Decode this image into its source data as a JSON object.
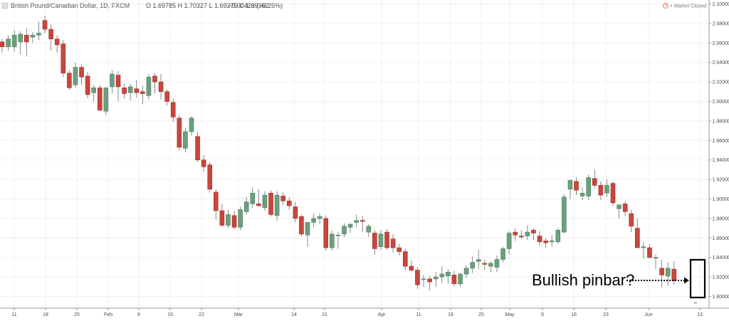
{
  "header": {
    "symbol_title": "British Pound/Canadian Dollar, 1D, FXCM",
    "ohlc": [
      {
        "label": "O",
        "value": "1.69785"
      },
      {
        "label": "H",
        "value": "1.70327"
      },
      {
        "label": "L",
        "value": "1.69275"
      },
      {
        "label": "C",
        "value": "1.69362"
      }
    ],
    "change": "−0.00423 (−0.25%)",
    "market_status": "Market Closed",
    "market_status_icon": "clock-icon"
  },
  "colors": {
    "bull": "#6b9f7e",
    "bear": "#c9463d",
    "grid": "#f0f0f0",
    "axis": "#9a9a9a",
    "highlight_box": "#000000"
  },
  "annotation": {
    "text": "Bullish pinbar?"
  },
  "footer": {
    "scroll_icon": "double-chevron-right-icon"
  },
  "chart_data": {
    "type": "candlestick",
    "y_axis_ticks": [
      "2.10000",
      "2.08000",
      "2.06000",
      "2.04000",
      "2.02000",
      "2.00000",
      "1.98000",
      "1.96000",
      "1.94000",
      "1.92000",
      "1.90000",
      "1.88000",
      "1.86000",
      "1.84000",
      "1.82000",
      "1.80000"
    ],
    "ylim": [
      1.788,
      2.104
    ],
    "x_axis_labels": [
      "11",
      "18",
      "25",
      "Feb",
      "8",
      "15",
      "22",
      "Mar",
      "14",
      "21",
      "Apr",
      "11",
      "18",
      "25",
      "May",
      "9",
      "16",
      "23",
      "Jun",
      "13"
    ],
    "candles": [
      {
        "o": 2.061,
        "h": 2.064,
        "l": 2.05,
        "c": 2.056
      },
      {
        "o": 2.056,
        "h": 2.068,
        "l": 2.052,
        "c": 2.064
      },
      {
        "o": 2.056,
        "h": 2.073,
        "l": 2.051,
        "c": 2.068
      },
      {
        "o": 2.061,
        "h": 2.072,
        "l": 2.048,
        "c": 2.069
      },
      {
        "o": 2.068,
        "h": 2.075,
        "l": 2.046,
        "c": 2.061
      },
      {
        "o": 2.066,
        "h": 2.071,
        "l": 2.06,
        "c": 2.068
      },
      {
        "o": 2.068,
        "h": 2.082,
        "l": 2.063,
        "c": 2.07
      },
      {
        "o": 2.083,
        "h": 2.088,
        "l": 2.07,
        "c": 2.074
      },
      {
        "o": 2.074,
        "h": 2.079,
        "l": 2.052,
        "c": 2.064
      },
      {
        "o": 2.064,
        "h": 2.068,
        "l": 2.05,
        "c": 2.058
      },
      {
        "o": 2.059,
        "h": 2.063,
        "l": 2.025,
        "c": 2.029
      },
      {
        "o": 2.029,
        "h": 2.032,
        "l": 2.012,
        "c": 2.014
      },
      {
        "o": 2.017,
        "h": 2.04,
        "l": 2.014,
        "c": 2.035
      },
      {
        "o": 2.035,
        "h": 2.038,
        "l": 2.017,
        "c": 2.025
      },
      {
        "o": 2.026,
        "h": 2.03,
        "l": 2.003,
        "c": 2.007
      },
      {
        "o": 2.009,
        "h": 2.017,
        "l": 2.0,
        "c": 2.014
      },
      {
        "o": 2.014,
        "h": 2.017,
        "l": 1.99,
        "c": 1.991
      },
      {
        "o": 1.99,
        "h": 2.014,
        "l": 1.986,
        "c": 2.014
      },
      {
        "o": 2.015,
        "h": 2.032,
        "l": 2.008,
        "c": 2.028
      },
      {
        "o": 2.027,
        "h": 2.031,
        "l": 2.0,
        "c": 2.015
      },
      {
        "o": 2.014,
        "h": 2.018,
        "l": 2.003,
        "c": 2.008
      },
      {
        "o": 2.009,
        "h": 2.018,
        "l": 2.001,
        "c": 2.015
      },
      {
        "o": 2.013,
        "h": 2.022,
        "l": 2.004,
        "c": 2.009
      },
      {
        "o": 2.01,
        "h": 2.016,
        "l": 1.997,
        "c": 2.008
      },
      {
        "o": 2.006,
        "h": 2.028,
        "l": 2.002,
        "c": 2.025
      },
      {
        "o": 2.026,
        "h": 2.029,
        "l": 2.008,
        "c": 2.02
      },
      {
        "o": 2.02,
        "h": 2.028,
        "l": 2.002,
        "c": 2.01
      },
      {
        "o": 2.01,
        "h": 2.012,
        "l": 1.996,
        "c": 2.0
      },
      {
        "o": 1.999,
        "h": 2.003,
        "l": 1.979,
        "c": 1.984
      },
      {
        "o": 1.983,
        "h": 1.986,
        "l": 1.95,
        "c": 1.953
      },
      {
        "o": 1.952,
        "h": 1.973,
        "l": 1.948,
        "c": 1.969
      },
      {
        "o": 1.969,
        "h": 1.985,
        "l": 1.965,
        "c": 1.983
      },
      {
        "o": 1.964,
        "h": 1.969,
        "l": 1.938,
        "c": 1.94
      },
      {
        "o": 1.94,
        "h": 1.945,
        "l": 1.928,
        "c": 1.933
      },
      {
        "o": 1.935,
        "h": 1.938,
        "l": 1.906,
        "c": 1.91
      },
      {
        "o": 1.907,
        "h": 1.91,
        "l": 1.879,
        "c": 1.888
      },
      {
        "o": 1.888,
        "h": 1.895,
        "l": 1.871,
        "c": 1.873
      },
      {
        "o": 1.873,
        "h": 1.889,
        "l": 1.87,
        "c": 1.884
      },
      {
        "o": 1.883,
        "h": 1.888,
        "l": 1.869,
        "c": 1.871
      },
      {
        "o": 1.871,
        "h": 1.892,
        "l": 1.868,
        "c": 1.889
      },
      {
        "o": 1.887,
        "h": 1.902,
        "l": 1.884,
        "c": 1.897
      },
      {
        "o": 1.895,
        "h": 1.912,
        "l": 1.891,
        "c": 1.906
      },
      {
        "o": 1.895,
        "h": 1.91,
        "l": 1.893,
        "c": 1.893
      },
      {
        "o": 1.891,
        "h": 1.908,
        "l": 1.888,
        "c": 1.904
      },
      {
        "o": 1.906,
        "h": 1.909,
        "l": 1.882,
        "c": 1.884
      },
      {
        "o": 1.883,
        "h": 1.908,
        "l": 1.878,
        "c": 1.904
      },
      {
        "o": 1.903,
        "h": 1.907,
        "l": 1.894,
        "c": 1.898
      },
      {
        "o": 1.898,
        "h": 1.902,
        "l": 1.889,
        "c": 1.893
      },
      {
        "o": 1.892,
        "h": 1.897,
        "l": 1.876,
        "c": 1.88
      },
      {
        "o": 1.882,
        "h": 1.884,
        "l": 1.862,
        "c": 1.864
      },
      {
        "o": 1.863,
        "h": 1.873,
        "l": 1.851,
        "c": 1.876
      },
      {
        "o": 1.876,
        "h": 1.885,
        "l": 1.871,
        "c": 1.88
      },
      {
        "o": 1.88,
        "h": 1.885,
        "l": 1.874,
        "c": 1.882
      },
      {
        "o": 1.88,
        "h": 1.883,
        "l": 1.847,
        "c": 1.85
      },
      {
        "o": 1.85,
        "h": 1.868,
        "l": 1.847,
        "c": 1.864
      },
      {
        "o": 1.863,
        "h": 1.866,
        "l": 1.849,
        "c": 1.863
      },
      {
        "o": 1.864,
        "h": 1.875,
        "l": 1.861,
        "c": 1.872
      },
      {
        "o": 1.871,
        "h": 1.876,
        "l": 1.865,
        "c": 1.874
      },
      {
        "o": 1.876,
        "h": 1.884,
        "l": 1.871,
        "c": 1.878
      },
      {
        "o": 1.878,
        "h": 1.883,
        "l": 1.866,
        "c": 1.877
      },
      {
        "o": 1.866,
        "h": 1.874,
        "l": 1.861,
        "c": 1.872
      },
      {
        "o": 1.865,
        "h": 1.868,
        "l": 1.843,
        "c": 1.849
      },
      {
        "o": 1.851,
        "h": 1.868,
        "l": 1.848,
        "c": 1.864
      },
      {
        "o": 1.866,
        "h": 1.869,
        "l": 1.848,
        "c": 1.85
      },
      {
        "o": 1.859,
        "h": 1.864,
        "l": 1.845,
        "c": 1.85
      },
      {
        "o": 1.85,
        "h": 1.854,
        "l": 1.842,
        "c": 1.846
      },
      {
        "o": 1.846,
        "h": 1.849,
        "l": 1.827,
        "c": 1.831
      },
      {
        "o": 1.831,
        "h": 1.837,
        "l": 1.825,
        "c": 1.827
      },
      {
        "o": 1.827,
        "h": 1.83,
        "l": 1.808,
        "c": 1.812
      },
      {
        "o": 1.818,
        "h": 1.822,
        "l": 1.81,
        "c": 1.818
      },
      {
        "o": 1.818,
        "h": 1.821,
        "l": 1.806,
        "c": 1.815
      },
      {
        "o": 1.818,
        "h": 1.825,
        "l": 1.81,
        "c": 1.82
      },
      {
        "o": 1.82,
        "h": 1.831,
        "l": 1.814,
        "c": 1.823
      },
      {
        "o": 1.821,
        "h": 1.828,
        "l": 1.813,
        "c": 1.825
      },
      {
        "o": 1.822,
        "h": 1.826,
        "l": 1.81,
        "c": 1.813
      },
      {
        "o": 1.813,
        "h": 1.824,
        "l": 1.81,
        "c": 1.823
      },
      {
        "o": 1.823,
        "h": 1.832,
        "l": 1.819,
        "c": 1.829
      },
      {
        "o": 1.829,
        "h": 1.841,
        "l": 1.824,
        "c": 1.835
      },
      {
        "o": 1.836,
        "h": 1.848,
        "l": 1.828,
        "c": 1.838
      },
      {
        "o": 1.834,
        "h": 1.838,
        "l": 1.827,
        "c": 1.833
      },
      {
        "o": 1.831,
        "h": 1.836,
        "l": 1.825,
        "c": 1.834
      },
      {
        "o": 1.83,
        "h": 1.842,
        "l": 1.825,
        "c": 1.838
      },
      {
        "o": 1.838,
        "h": 1.851,
        "l": 1.835,
        "c": 1.849
      },
      {
        "o": 1.849,
        "h": 1.867,
        "l": 1.843,
        "c": 1.865
      },
      {
        "o": 1.866,
        "h": 1.87,
        "l": 1.857,
        "c": 1.863
      },
      {
        "o": 1.862,
        "h": 1.868,
        "l": 1.859,
        "c": 1.861
      },
      {
        "o": 1.862,
        "h": 1.873,
        "l": 1.858,
        "c": 1.866
      },
      {
        "o": 1.868,
        "h": 1.87,
        "l": 1.858,
        "c": 1.865
      },
      {
        "o": 1.862,
        "h": 1.867,
        "l": 1.852,
        "c": 1.856
      },
      {
        "o": 1.857,
        "h": 1.86,
        "l": 1.85,
        "c": 1.855
      },
      {
        "o": 1.856,
        "h": 1.863,
        "l": 1.851,
        "c": 1.857
      },
      {
        "o": 1.856,
        "h": 1.87,
        "l": 1.854,
        "c": 1.868
      },
      {
        "o": 1.866,
        "h": 1.905,
        "l": 1.865,
        "c": 1.902
      },
      {
        "o": 1.91,
        "h": 1.92,
        "l": 1.9,
        "c": 1.919
      },
      {
        "o": 1.918,
        "h": 1.922,
        "l": 1.904,
        "c": 1.909
      },
      {
        "o": 1.903,
        "h": 1.912,
        "l": 1.899,
        "c": 1.906
      },
      {
        "o": 1.903,
        "h": 1.925,
        "l": 1.899,
        "c": 1.922
      },
      {
        "o": 1.921,
        "h": 1.93,
        "l": 1.911,
        "c": 1.914
      },
      {
        "o": 1.914,
        "h": 1.918,
        "l": 1.899,
        "c": 1.904
      },
      {
        "o": 1.906,
        "h": 1.92,
        "l": 1.902,
        "c": 1.914
      },
      {
        "o": 1.916,
        "h": 1.918,
        "l": 1.893,
        "c": 1.896
      },
      {
        "o": 1.89,
        "h": 1.893,
        "l": 1.88,
        "c": 1.894
      },
      {
        "o": 1.895,
        "h": 1.898,
        "l": 1.882,
        "c": 1.887
      },
      {
        "o": 1.885,
        "h": 1.889,
        "l": 1.866,
        "c": 1.872
      },
      {
        "o": 1.87,
        "h": 1.88,
        "l": 1.85,
        "c": 1.85
      },
      {
        "o": 1.85,
        "h": 1.856,
        "l": 1.839,
        "c": 1.851
      },
      {
        "o": 1.85,
        "h": 1.854,
        "l": 1.839,
        "c": 1.84
      },
      {
        "o": 1.84,
        "h": 1.843,
        "l": 1.828,
        "c": 1.84
      },
      {
        "o": 1.829,
        "h": 1.838,
        "l": 1.809,
        "c": 1.822
      },
      {
        "o": 1.821,
        "h": 1.835,
        "l": 1.811,
        "c": 1.829
      },
      {
        "o": 1.828,
        "h": 1.836,
        "l": 1.812,
        "c": 1.816
      }
    ]
  }
}
